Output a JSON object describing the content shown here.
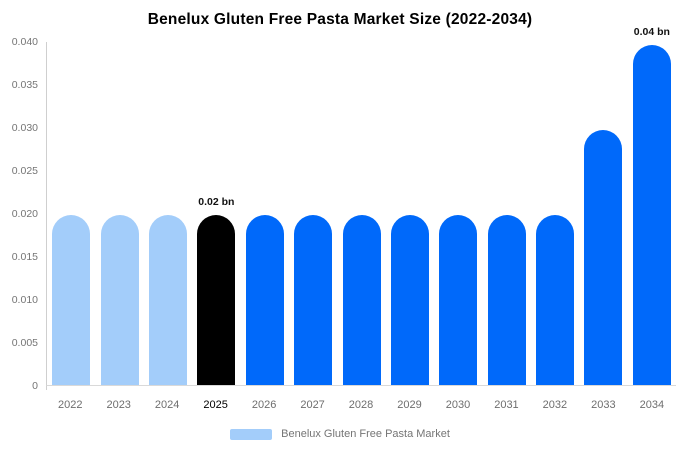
{
  "chart_data": {
    "type": "bar",
    "title": "Benelux Gluten Free Pasta Market Size (2022-2034)",
    "categories": [
      "2022",
      "2023",
      "2024",
      "2025",
      "2026",
      "2027",
      "2028",
      "2029",
      "2030",
      "2031",
      "2032",
      "2033",
      "2034"
    ],
    "values": [
      0.0198,
      0.0198,
      0.0198,
      0.0198,
      0.0198,
      0.0198,
      0.0198,
      0.0198,
      0.0198,
      0.0198,
      0.0198,
      0.0297,
      0.0396
    ],
    "bar_colors": [
      "#a3cdfa",
      "#a3cdfa",
      "#a3cdfa",
      "#000000",
      "#0069fa",
      "#0069fa",
      "#0069fa",
      "#0069fa",
      "#0069fa",
      "#0069fa",
      "#0069fa",
      "#0069fa",
      "#0069fa"
    ],
    "annotations": [
      {
        "category": "2025",
        "text": "0.02 bn"
      },
      {
        "category": "2034",
        "text": "0.04 bn"
      }
    ],
    "x_label_highlight": "2025",
    "ylim": [
      0,
      0.04
    ],
    "y_ticks": [
      {
        "v": 0,
        "label": "0"
      },
      {
        "v": 0.005,
        "label": "0.005"
      },
      {
        "v": 0.01,
        "label": "0.010"
      },
      {
        "v": 0.015,
        "label": "0.015"
      },
      {
        "v": 0.02,
        "label": "0.020"
      },
      {
        "v": 0.025,
        "label": "0.025"
      },
      {
        "v": 0.03,
        "label": "0.030"
      },
      {
        "v": 0.035,
        "label": "0.035"
      },
      {
        "v": 0.04,
        "label": "0.040"
      }
    ],
    "grid": false,
    "legend_position": "bottom",
    "legend": [
      {
        "label": "Benelux Gluten Free Pasta Market",
        "color": "#a3cdfa"
      }
    ],
    "colors": {
      "axis_line": "#cfcfcf",
      "tick_text": "#757575",
      "x_label_text": "#6e6e6e",
      "annotation_text": "#111111"
    }
  }
}
